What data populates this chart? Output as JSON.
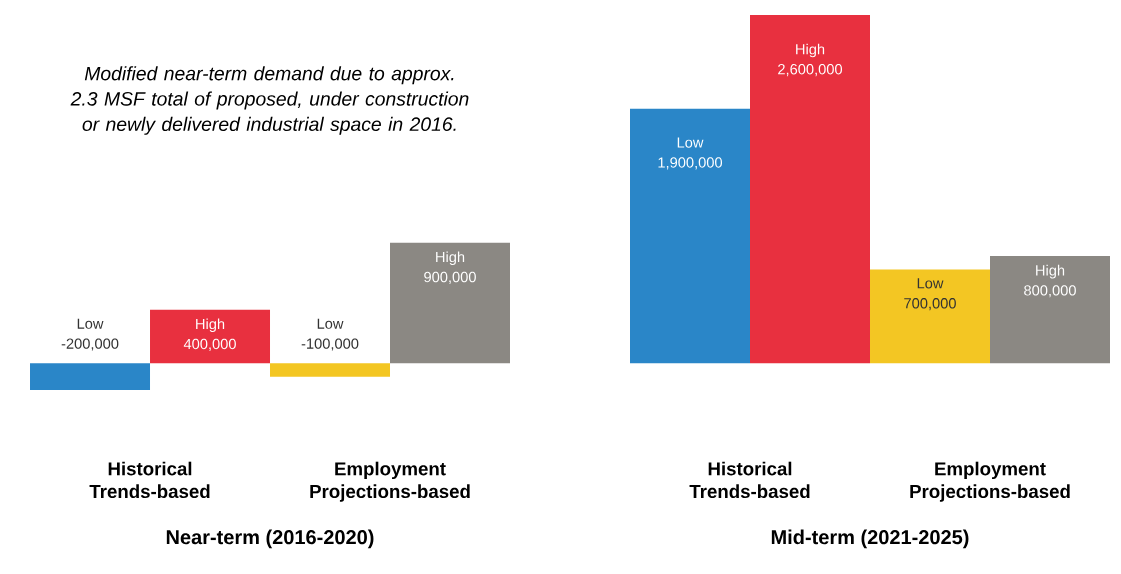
{
  "chart_data": [
    {
      "type": "bar",
      "categories": [
        "Historical Trends-based",
        "Employment Projections-based"
      ],
      "xlabel": "Near-term (2016-2020)",
      "tick_labels": "x",
      "annotations": [
        "Modified near-term demand due to approx. 2.3 MSF total of proposed, under construction or newly delivered industrial space in 2016."
      ],
      "series": [
        {
          "name": "Low",
          "colors": [
            "#2a86c8",
            "#f3c623"
          ],
          "values": [
            -200000,
            -100000
          ],
          "value_labels": [
            "-200,000",
            "-100,000"
          ]
        },
        {
          "name": "High",
          "colors": [
            "#e8303f",
            "#8b8883"
          ],
          "values": [
            400000,
            900000
          ],
          "value_labels": [
            "400,000",
            "900,000"
          ]
        }
      ]
    },
    {
      "type": "bar",
      "categories": [
        "Historical Trends-based",
        "Employment Projections-based"
      ],
      "xlabel": "Mid-term (2021-2025)",
      "tick_labels": "x",
      "series": [
        {
          "name": "Low",
          "colors": [
            "#2a86c8",
            "#f3c623"
          ],
          "values": [
            1900000,
            700000
          ],
          "value_labels": [
            "1,900,000",
            "700,000"
          ]
        },
        {
          "name": "High",
          "colors": [
            "#e8303f",
            "#8b8883"
          ],
          "values": [
            2600000,
            800000
          ],
          "value_labels": [
            "2,600,000",
            "800,000"
          ]
        }
      ]
    }
  ]
}
